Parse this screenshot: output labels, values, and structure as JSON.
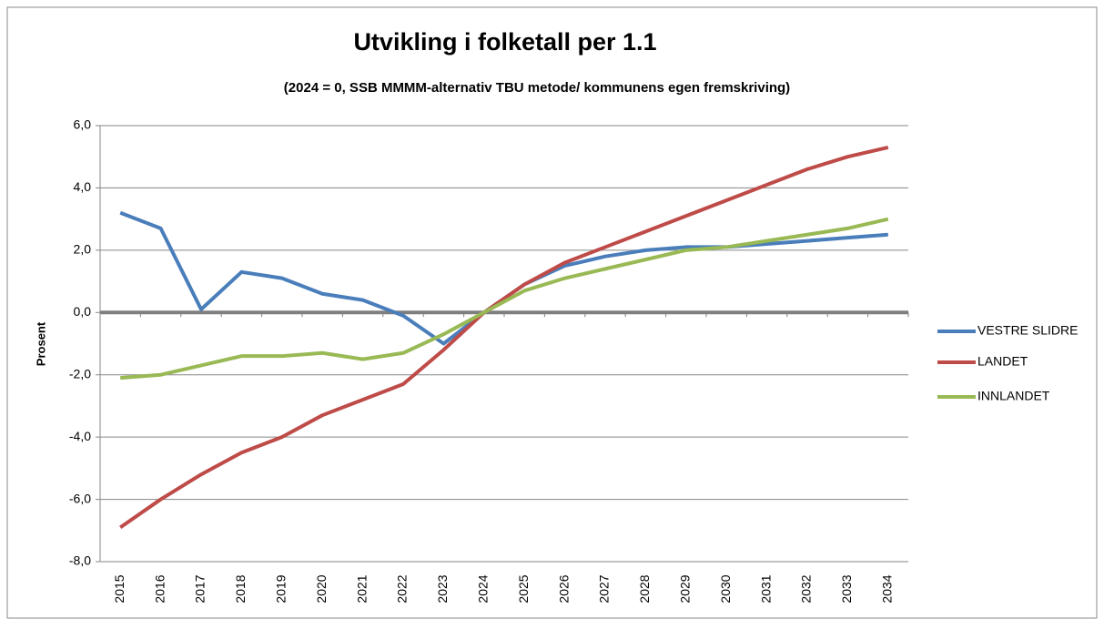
{
  "chart_data": {
    "type": "line",
    "title": "Utvikling i folketall per 1.1",
    "subtitle": "(2024 = 0, SSB MMMM-alternativ TBU metode/ kommunens  egen fremskriving)",
    "y_label": "Prosent",
    "categories": [
      "2015",
      "2016",
      "2017",
      "2018",
      "2019",
      "2020",
      "2021",
      "2022",
      "2023",
      "2024",
      "2025",
      "2026",
      "2027",
      "2028",
      "2029",
      "2030",
      "2031",
      "2032",
      "2033",
      "2034"
    ],
    "series": [
      {
        "name": "VESTRE SLIDRE",
        "color": "#4a7ebb",
        "values": [
          3.2,
          2.7,
          0.1,
          1.3,
          1.1,
          0.6,
          0.4,
          -0.1,
          -1.0,
          0,
          0.9,
          1.5,
          1.8,
          2.0,
          2.1,
          2.1,
          2.2,
          2.3,
          2.4,
          2.5
        ]
      },
      {
        "name": "LANDET",
        "color": "#be4b48",
        "values": [
          -6.9,
          -6.0,
          -5.2,
          -4.5,
          -4.0,
          -3.3,
          -2.8,
          -2.3,
          -1.2,
          0,
          0.9,
          1.6,
          2.1,
          2.6,
          3.1,
          3.6,
          4.1,
          4.6,
          5.0,
          5.3
        ]
      },
      {
        "name": "INNLANDET",
        "color": "#98b954",
        "values": [
          -2.1,
          -2.0,
          -1.7,
          -1.4,
          -1.4,
          -1.3,
          -1.5,
          -1.3,
          -0.7,
          0,
          0.7,
          1.1,
          1.4,
          1.7,
          2.0,
          2.1,
          2.3,
          2.5,
          2.7,
          3.0
        ]
      }
    ],
    "ylim": [
      -8,
      6
    ],
    "yticks": [
      {
        "value": -8,
        "label": "-8,0"
      },
      {
        "value": -6,
        "label": "-6,0"
      },
      {
        "value": -4,
        "label": "-4,0"
      },
      {
        "value": -2,
        "label": "-2,0"
      },
      {
        "value": 0,
        "label": "0,0"
      },
      {
        "value": 2,
        "label": "2,0"
      },
      {
        "value": 4,
        "label": "4,0"
      },
      {
        "value": 6,
        "label": "6,0"
      }
    ],
    "grid": true,
    "legend": "right"
  }
}
